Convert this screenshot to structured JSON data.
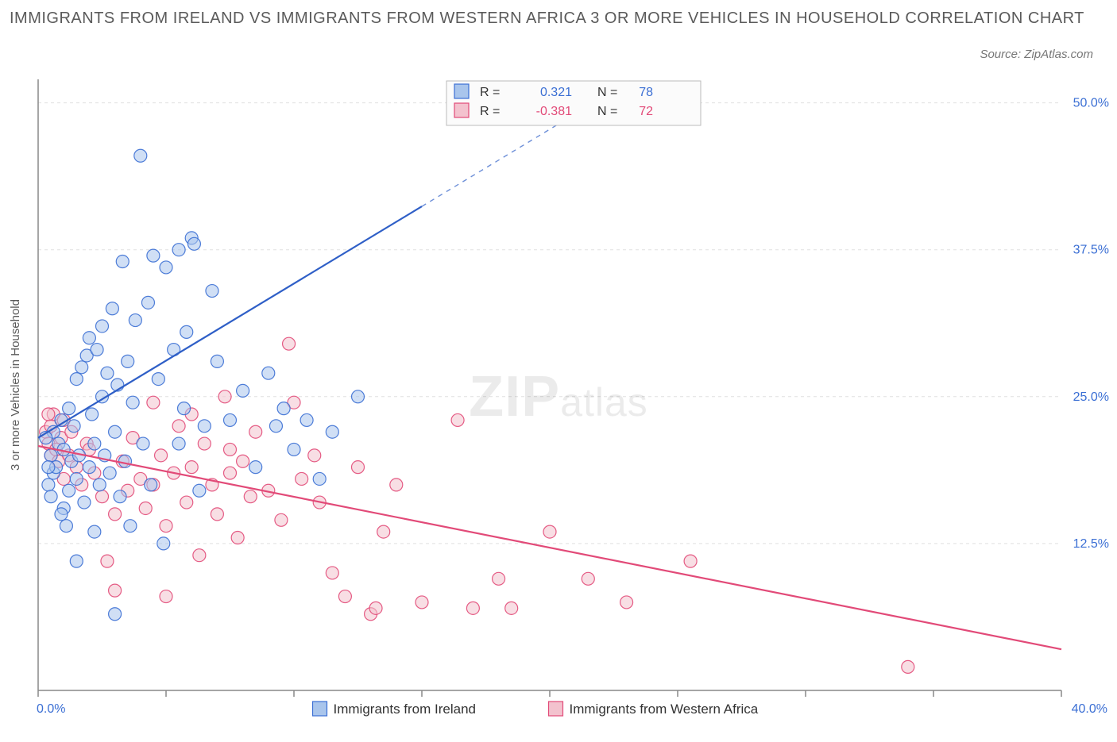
{
  "title": "IMMIGRANTS FROM IRELAND VS IMMIGRANTS FROM WESTERN AFRICA 3 OR MORE VEHICLES IN HOUSEHOLD CORRELATION CHART",
  "source_label": "Source: ZipAtlas.com",
  "watermark": {
    "part1": "ZIP",
    "part2": "atlas"
  },
  "y_axis": {
    "label": "3 or more Vehicles in Household",
    "label_fontsize": 15,
    "label_color": "#5a5a5a"
  },
  "x_axis": {
    "min_label": "0.0%",
    "max_label": "40.0%",
    "label_color": "#3b6fd4",
    "label_fontsize": 16
  },
  "y_ticks": [
    {
      "value": 12.5,
      "label": "12.5%"
    },
    {
      "value": 25.0,
      "label": "25.0%"
    },
    {
      "value": 37.5,
      "label": "37.5%"
    },
    {
      "value": 50.0,
      "label": "50.0%"
    }
  ],
  "x_tick_positions": [
    0,
    5,
    10,
    15,
    20,
    25,
    30,
    35,
    40
  ],
  "legend_series": [
    {
      "label": "Immigrants from Ireland",
      "color_fill": "#a9c5ec",
      "color_stroke": "#3b6fd4"
    },
    {
      "label": "Immigrants from Western Africa",
      "color_fill": "#f3c2ce",
      "color_stroke": "#e24a78"
    }
  ],
  "stats_box": {
    "bg": "#fbfbfb",
    "border": "#bbbbbb",
    "rows": [
      {
        "swatch_fill": "#a9c5ec",
        "swatch_stroke": "#3b6fd4",
        "r_label": "R =",
        "r_value": "0.321",
        "n_label": "N =",
        "n_value": "78",
        "value_color": "#3b6fd4"
      },
      {
        "swatch_fill": "#f3c2ce",
        "swatch_stroke": "#e24a78",
        "r_label": "R =",
        "r_value": "-0.381",
        "n_label": "N =",
        "n_value": "72",
        "value_color": "#e24a78"
      }
    ]
  },
  "plot": {
    "xlim": [
      0,
      40
    ],
    "ylim": [
      0,
      52
    ],
    "grid_color": "#e0e0e0",
    "axis_color": "#888888",
    "tick_color": "#888888",
    "marker_radius": 8,
    "marker_opacity": 0.55,
    "line_width": 2.2
  },
  "regression_lines": {
    "blue": {
      "x1": 0,
      "y1": 21.5,
      "x2": 40,
      "y2": 74,
      "solid_until_x": 15,
      "color": "#2f5fc7"
    },
    "pink": {
      "x1": 0,
      "y1": 20.8,
      "x2": 40,
      "y2": 3.5,
      "color": "#e24a78"
    }
  },
  "series_ireland": {
    "fill": "#a9c5ec",
    "stroke": "#3b6fd4",
    "points": [
      [
        0.4,
        17.5
      ],
      [
        0.5,
        20.0
      ],
      [
        0.6,
        22.0
      ],
      [
        0.6,
        18.5
      ],
      [
        0.7,
        19.0
      ],
      [
        0.8,
        21.0
      ],
      [
        0.9,
        23.0
      ],
      [
        1.0,
        15.5
      ],
      [
        1.0,
        20.5
      ],
      [
        1.2,
        17.0
      ],
      [
        1.2,
        24.0
      ],
      [
        1.3,
        19.5
      ],
      [
        1.4,
        22.5
      ],
      [
        1.5,
        18.0
      ],
      [
        1.5,
        26.5
      ],
      [
        1.6,
        20.0
      ],
      [
        1.7,
        27.5
      ],
      [
        1.8,
        16.0
      ],
      [
        1.9,
        28.5
      ],
      [
        2.0,
        19.0
      ],
      [
        2.0,
        30.0
      ],
      [
        2.1,
        23.5
      ],
      [
        2.2,
        21.0
      ],
      [
        2.3,
        29.0
      ],
      [
        2.4,
        17.5
      ],
      [
        2.5,
        31.0
      ],
      [
        2.5,
        25.0
      ],
      [
        2.6,
        20.0
      ],
      [
        2.7,
        27.0
      ],
      [
        2.8,
        18.5
      ],
      [
        2.9,
        32.5
      ],
      [
        3.0,
        22.0
      ],
      [
        3.0,
        6.5
      ],
      [
        3.1,
        26.0
      ],
      [
        3.3,
        36.5
      ],
      [
        3.4,
        19.5
      ],
      [
        3.5,
        28.0
      ],
      [
        3.6,
        14.0
      ],
      [
        3.7,
        24.5
      ],
      [
        3.8,
        31.5
      ],
      [
        4.0,
        45.5
      ],
      [
        4.1,
        21.0
      ],
      [
        4.3,
        33.0
      ],
      [
        4.4,
        17.5
      ],
      [
        4.5,
        37.0
      ],
      [
        4.7,
        26.5
      ],
      [
        4.9,
        12.5
      ],
      [
        5.0,
        36.0
      ],
      [
        5.3,
        29.0
      ],
      [
        5.5,
        37.5
      ],
      [
        5.5,
        21.0
      ],
      [
        5.7,
        24.0
      ],
      [
        5.8,
        30.5
      ],
      [
        6.0,
        38.5
      ],
      [
        6.1,
        38.0
      ],
      [
        6.3,
        17.0
      ],
      [
        6.5,
        22.5
      ],
      [
        6.8,
        34.0
      ],
      [
        7.0,
        28.0
      ],
      [
        7.5,
        23.0
      ],
      [
        8.0,
        25.5
      ],
      [
        8.5,
        19.0
      ],
      [
        9.0,
        27.0
      ],
      [
        9.3,
        22.5
      ],
      [
        9.6,
        24.0
      ],
      [
        10.0,
        20.5
      ],
      [
        10.5,
        23.0
      ],
      [
        11.0,
        18.0
      ],
      [
        11.5,
        22.0
      ],
      [
        12.5,
        25.0
      ],
      [
        1.5,
        11.0
      ],
      [
        2.2,
        13.5
      ],
      [
        0.9,
        15.0
      ],
      [
        1.1,
        14.0
      ],
      [
        3.2,
        16.5
      ],
      [
        0.3,
        21.5
      ],
      [
        0.4,
        19.0
      ],
      [
        0.5,
        16.5
      ]
    ]
  },
  "series_wafrica": {
    "fill": "#f3c2ce",
    "stroke": "#e24a78",
    "points": [
      [
        0.3,
        22.0
      ],
      [
        0.4,
        21.0
      ],
      [
        0.5,
        20.0
      ],
      [
        0.5,
        22.5
      ],
      [
        0.6,
        23.5
      ],
      [
        0.7,
        20.5
      ],
      [
        0.8,
        19.5
      ],
      [
        0.9,
        21.5
      ],
      [
        1.0,
        18.0
      ],
      [
        1.2,
        20.0
      ],
      [
        1.3,
        22.0
      ],
      [
        1.5,
        19.0
      ],
      [
        1.7,
        17.5
      ],
      [
        1.9,
        21.0
      ],
      [
        2.0,
        20.5
      ],
      [
        2.2,
        18.5
      ],
      [
        2.5,
        16.5
      ],
      [
        2.7,
        11.0
      ],
      [
        3.0,
        15.0
      ],
      [
        3.0,
        8.5
      ],
      [
        3.3,
        19.5
      ],
      [
        3.5,
        17.0
      ],
      [
        3.7,
        21.5
      ],
      [
        4.0,
        18.0
      ],
      [
        4.2,
        15.5
      ],
      [
        4.5,
        17.5
      ],
      [
        4.8,
        20.0
      ],
      [
        5.0,
        14.0
      ],
      [
        5.0,
        8.0
      ],
      [
        5.3,
        18.5
      ],
      [
        5.5,
        22.5
      ],
      [
        5.8,
        16.0
      ],
      [
        6.0,
        19.0
      ],
      [
        6.3,
        11.5
      ],
      [
        6.5,
        21.0
      ],
      [
        6.8,
        17.5
      ],
      [
        7.0,
        15.0
      ],
      [
        7.3,
        25.0
      ],
      [
        7.5,
        18.5
      ],
      [
        7.8,
        13.0
      ],
      [
        8.0,
        19.5
      ],
      [
        8.3,
        16.5
      ],
      [
        8.5,
        22.0
      ],
      [
        9.0,
        17.0
      ],
      [
        9.5,
        14.5
      ],
      [
        9.8,
        29.5
      ],
      [
        10.0,
        24.5
      ],
      [
        10.3,
        18.0
      ],
      [
        10.8,
        20.0
      ],
      [
        11.0,
        16.0
      ],
      [
        11.5,
        10.0
      ],
      [
        12.0,
        8.0
      ],
      [
        12.5,
        19.0
      ],
      [
        13.0,
        6.5
      ],
      [
        13.2,
        7.0
      ],
      [
        13.5,
        13.5
      ],
      [
        14.0,
        17.5
      ],
      [
        15.0,
        7.5
      ],
      [
        16.4,
        23.0
      ],
      [
        17.0,
        7.0
      ],
      [
        18.0,
        9.5
      ],
      [
        18.5,
        7.0
      ],
      [
        20.0,
        13.5
      ],
      [
        21.5,
        9.5
      ],
      [
        23.0,
        7.5
      ],
      [
        25.5,
        11.0
      ],
      [
        34.0,
        2.0
      ],
      [
        6.0,
        23.5
      ],
      [
        7.5,
        20.5
      ],
      [
        4.5,
        24.5
      ],
      [
        1.0,
        23.0
      ],
      [
        0.4,
        23.5
      ]
    ]
  }
}
